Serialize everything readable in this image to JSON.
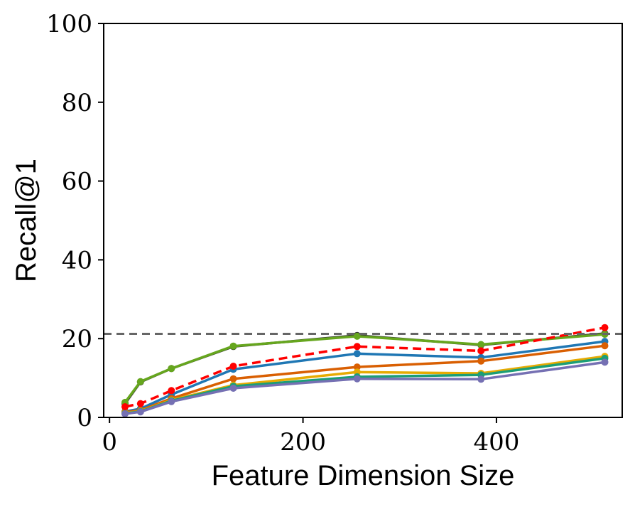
{
  "chart_data": {
    "type": "line",
    "xlabel": "Feature Dimension Size",
    "ylabel": "Recall@1",
    "xlim": [
      -6,
      530
    ],
    "ylim": [
      0,
      100
    ],
    "xticks": [
      0,
      200,
      400
    ],
    "yticks": [
      0,
      20,
      40,
      60,
      80,
      100
    ],
    "grid": false,
    "reference_line": {
      "y": 21.2,
      "style": "dashed",
      "color": "#666666"
    },
    "x": [
      16,
      32,
      64,
      128,
      256,
      384,
      512
    ],
    "series": [
      {
        "color": "#1f77b4",
        "style": "solid",
        "values": [
          1.5,
          2.2,
          5.8,
          12.2,
          16.2,
          15.2,
          19.3
        ]
      },
      {
        "color": "#d95f02",
        "style": "solid",
        "values": [
          1.3,
          1.8,
          4.8,
          9.8,
          12.8,
          14.3,
          18.2
        ]
      },
      {
        "color": "#e6ab02",
        "style": "solid",
        "values": [
          1.1,
          1.6,
          4.4,
          8.2,
          11.5,
          11.2,
          15.5
        ]
      },
      {
        "color": "#1b9e77",
        "style": "solid",
        "values": [
          1.0,
          1.5,
          4.2,
          7.9,
          10.3,
          10.8,
          15.0
        ]
      },
      {
        "color": "#7570b3",
        "style": "solid",
        "values": [
          0.9,
          1.4,
          4.0,
          7.4,
          9.8,
          9.7,
          14.0
        ]
      },
      {
        "color": "#333333",
        "style": "solid",
        "values": [
          3.5,
          9.0,
          12.4,
          18.0,
          20.8,
          18.4,
          21.3
        ]
      },
      {
        "color": "#66a61e",
        "style": "solid",
        "values": [
          3.8,
          9.1,
          12.4,
          18.1,
          20.6,
          18.5,
          21.1
        ]
      },
      {
        "color": "#ff0000",
        "style": "dashed",
        "values": [
          2.7,
          3.5,
          6.8,
          13.0,
          18.0,
          16.9,
          22.8
        ]
      }
    ]
  }
}
